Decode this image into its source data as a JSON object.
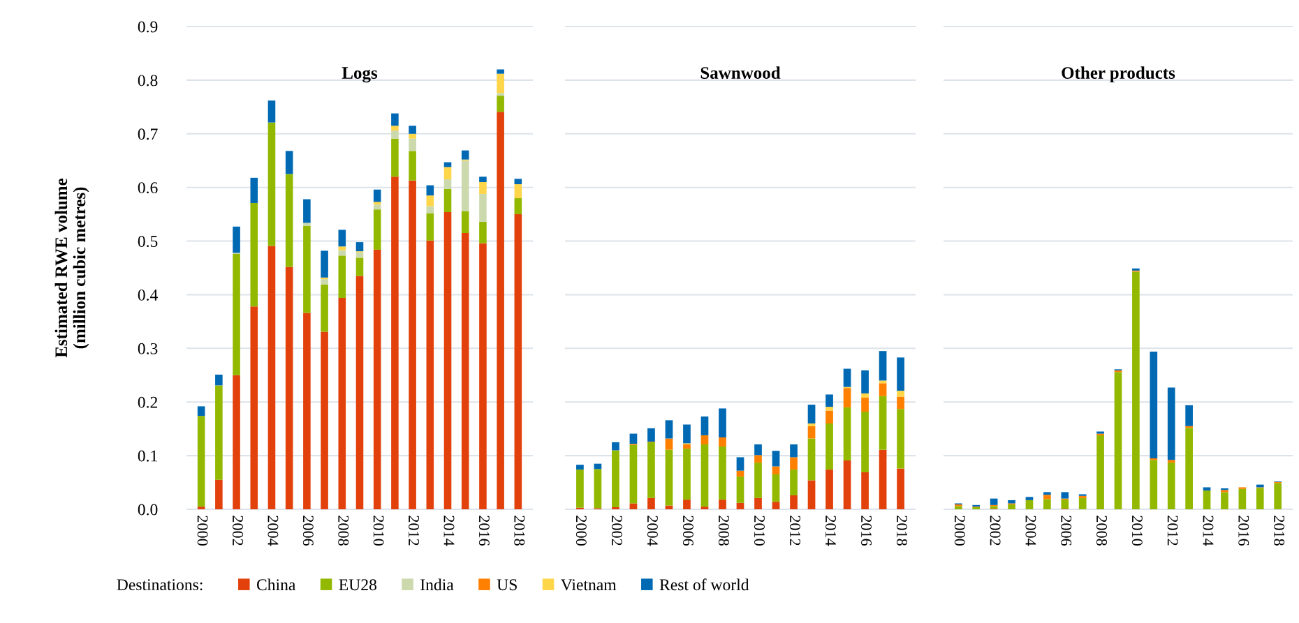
{
  "chart_data": [
    {
      "type": "bar",
      "title": "Logs",
      "ylabel": "Estimated RWE volume\n(million cubic metres)",
      "legend": "bottom",
      "legend_title": "Destinations:",
      "stacked": true,
      "grid": "y",
      "ylim": [
        0,
        0.9
      ],
      "yticks": [
        {
          "value": 0,
          "label": "0.0"
        },
        0.1,
        0.2,
        0.3,
        0.4,
        0.5,
        0.6,
        0.7,
        0.8,
        0.9
      ],
      "categories": [
        "2000",
        null,
        "2002",
        null,
        "2004",
        null,
        "2006",
        null,
        "2008",
        null,
        "2010",
        null,
        "2012",
        null,
        "2014",
        null,
        "2016",
        null,
        "2018"
      ],
      "series": [
        {
          "name": "China",
          "color": "#e2410b",
          "values": [
            0.005,
            0.055,
            0.25,
            0.378,
            0.491,
            0.452,
            0.366,
            0.331,
            0.394,
            0.435,
            0.484,
            0.62,
            0.613,
            0.501,
            0.554,
            0.515,
            0.496,
            0.741,
            0.55
          ]
        },
        {
          "name": "EU28",
          "color": "#93b800",
          "values": [
            0.169,
            0.176,
            0.226,
            0.193,
            0.23,
            0.173,
            0.162,
            0.088,
            0.079,
            0.034,
            0.075,
            0.071,
            0.055,
            0.051,
            0.043,
            0.041,
            0.04,
            0.03,
            0.03
          ]
        },
        {
          "name": "India",
          "color": "#cbd9ad",
          "values": [
            0,
            0,
            0.002,
            0,
            0,
            0,
            0.006,
            0.01,
            0.01,
            0.01,
            0.009,
            0.015,
            0.023,
            0.013,
            0.018,
            0.094,
            0.052,
            0.005,
            0
          ]
        },
        {
          "name": "US",
          "color": "#ff8000",
          "values": [
            0,
            0,
            0,
            0,
            0,
            0,
            0,
            0,
            0,
            0,
            0,
            0,
            0,
            0,
            0,
            0,
            0,
            0,
            0
          ]
        },
        {
          "name": "Vietnam",
          "color": "#ffd54a",
          "values": [
            0,
            0,
            0,
            0,
            0,
            0,
            0,
            0.003,
            0.007,
            0.002,
            0.005,
            0.009,
            0.009,
            0.02,
            0.023,
            0.002,
            0.022,
            0.036,
            0.026
          ]
        },
        {
          "name": "Rest of world",
          "color": "#0069b4",
          "values": [
            0.018,
            0.02,
            0.049,
            0.047,
            0.041,
            0.043,
            0.044,
            0.05,
            0.031,
            0.017,
            0.023,
            0.023,
            0.015,
            0.019,
            0.009,
            0.017,
            0.01,
            0.008,
            0.01
          ]
        }
      ]
    },
    {
      "type": "bar",
      "title": "Sawnwood",
      "stacked": true,
      "grid": "y",
      "tick_labels": "x",
      "ylim": [
        0,
        0.9
      ],
      "yticks": [
        0,
        0.1,
        0.2,
        0.3,
        0.4,
        0.5,
        0.6,
        0.7,
        0.8,
        0.9
      ],
      "categories": [
        "2000",
        null,
        "2002",
        null,
        "2004",
        null,
        "2006",
        null,
        "2008",
        null,
        "2010",
        null,
        "2012",
        null,
        "2014",
        null,
        "2016",
        null,
        "2018"
      ],
      "series": [
        {
          "color": "#e2410b",
          "values": [
            0.003,
            0.002,
            0.004,
            0.011,
            0.021,
            0.007,
            0.018,
            0.005,
            0.018,
            0.012,
            0.021,
            0.014,
            0.026,
            0.054,
            0.074,
            0.091,
            0.069,
            0.111,
            0.076
          ]
        },
        {
          "color": "#93b800",
          "values": [
            0.071,
            0.073,
            0.106,
            0.109,
            0.104,
            0.104,
            0.095,
            0.116,
            0.099,
            0.049,
            0.066,
            0.051,
            0.048,
            0.078,
            0.086,
            0.099,
            0.113,
            0.1,
            0.111
          ]
        },
        {
          "color": "#cbd9ad",
          "values": [
            0,
            0,
            0,
            0,
            0,
            0,
            0,
            0,
            0,
            0,
            0,
            0,
            0,
            0,
            0,
            0,
            0,
            0,
            0
          ]
        },
        {
          "color": "#ff8000",
          "values": [
            0,
            0,
            0,
            0.002,
            0.001,
            0.021,
            0.008,
            0.017,
            0.017,
            0.011,
            0.014,
            0.015,
            0.023,
            0.023,
            0.024,
            0.036,
            0.026,
            0.024,
            0.023
          ]
        },
        {
          "color": "#ffd54a",
          "values": [
            0,
            0,
            0,
            0,
            0,
            0,
            0.002,
            0,
            0,
            0,
            0,
            0,
            null,
            0.005,
            0.007,
            0.002,
            0.008,
            0.005,
            0.011
          ]
        },
        {
          "color": "#0069b4",
          "values": [
            0.009,
            0.01,
            0.015,
            0.019,
            0.025,
            0.034,
            0.035,
            0.035,
            0.054,
            0.025,
            0.02,
            0.029,
            0.024,
            0.035,
            0.023,
            0.034,
            0.043,
            0.055,
            0.062
          ]
        }
      ]
    },
    {
      "type": "bar",
      "title": "Other products",
      "stacked": true,
      "grid": "y",
      "tick_labels": "x",
      "ylim": [
        0,
        0.9
      ],
      "yticks": [
        0,
        0.1,
        0.2,
        0.3,
        0.4,
        0.5,
        0.6,
        0.7,
        0.8,
        0.9
      ],
      "categories": [
        "2000",
        null,
        "2002",
        null,
        "2004",
        null,
        "2006",
        null,
        "2008",
        null,
        "2010",
        null,
        "2012",
        null,
        "2014",
        null,
        "2016",
        null,
        "2018"
      ],
      "series": [
        {
          "color": "#e2410b",
          "values": [
            0,
            0,
            0.001,
            0,
            0,
            0,
            0.001,
            0,
            0,
            0,
            0,
            0,
            0,
            0,
            0,
            0,
            0,
            0,
            0
          ]
        },
        {
          "color": "#93b800",
          "values": [
            0.006,
            0.004,
            0.005,
            0.009,
            0.017,
            0.019,
            0.017,
            0.021,
            0.138,
            0.256,
            0.443,
            0.092,
            0.087,
            0.152,
            0.035,
            0.032,
            0.038,
            0.04,
            0.049
          ]
        },
        {
          "color": "#cbd9ad",
          "values": [
            0,
            0,
            0,
            0,
            0,
            0,
            0,
            0,
            0,
            0,
            0,
            0,
            0,
            0,
            0,
            0,
            0,
            0,
            0
          ]
        },
        {
          "color": "#ff8000",
          "values": [
            0.003,
            0.001,
            0.002,
            0.002,
            0,
            0.008,
            0.002,
            0.004,
            0.003,
            0.003,
            0.002,
            0.003,
            0.005,
            0.003,
            0,
            0.004,
            0.003,
            0.001,
            0.002
          ]
        },
        {
          "color": "#ffd54a",
          "values": [
            0,
            0,
            0,
            0,
            0,
            0,
            0,
            0,
            0,
            0,
            0,
            0,
            0,
            0,
            0,
            0,
            0,
            0,
            0
          ]
        },
        {
          "color": "#0069b4",
          "values": [
            0.002,
            0.003,
            0.012,
            0.006,
            0.006,
            0.005,
            0.012,
            0.003,
            0.004,
            0.002,
            0.004,
            0.199,
            0.135,
            0.039,
            0.006,
            0.003,
            null,
            0.005,
            0.001
          ]
        }
      ]
    }
  ]
}
